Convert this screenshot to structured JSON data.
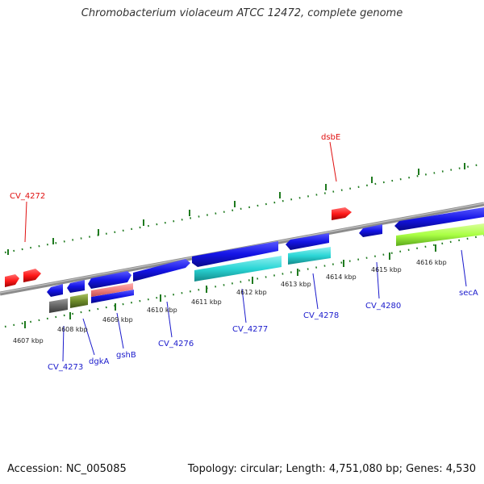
{
  "title": "Chromobacterium violaceum ATCC 12472, complete genome",
  "footer": {
    "accession": "Accession: NC_005085",
    "summary": "Topology: circular; Length: 4,751,080 bp; Genes: 4,530"
  },
  "colors": {
    "backbone": "#8c8c8c",
    "tick": "#1f7a1f",
    "cds": "#1414e6",
    "rna": "#ff1a1a",
    "gene_label": "#1a1acc",
    "rna_label": "#e01010",
    "cyan": "#2bd6d6",
    "lime": "#aaff44",
    "gray": "#666666",
    "olive": "#6e8c2a",
    "pink": "#f08080"
  },
  "scale_labels": [
    "4607 kbp",
    "4608 kbp",
    "4609 kbp",
    "4610 kbp",
    "4611 kbp",
    "4612 kbp",
    "4613 kbp",
    "4614 kbp",
    "4615 kbp",
    "4616 kbp"
  ],
  "gene_labels": [
    {
      "text": "CV_4272",
      "kind": "rna"
    },
    {
      "text": "dsbE",
      "kind": "rna"
    },
    {
      "text": "CV_4273",
      "kind": "cds"
    },
    {
      "text": "dgkA",
      "kind": "cds"
    },
    {
      "text": "gshB",
      "kind": "cds"
    },
    {
      "text": "CV_4276",
      "kind": "cds"
    },
    {
      "text": "CV_4277",
      "kind": "cds"
    },
    {
      "text": "CV_4278",
      "kind": "cds"
    },
    {
      "text": "CV_4280",
      "kind": "cds"
    },
    {
      "text": "secA",
      "kind": "cds"
    }
  ]
}
